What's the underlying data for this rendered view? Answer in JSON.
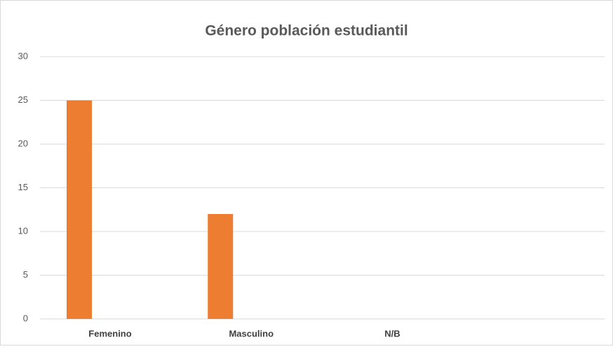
{
  "chart_data": {
    "type": "bar",
    "title": "Género población estudiantil",
    "categories": [
      "Femenino",
      "Masculino",
      "N/B",
      null
    ],
    "values": [
      25,
      12,
      0,
      null
    ],
    "color": "#ed7d31",
    "ylim": [
      0,
      30
    ],
    "yticks": [
      0,
      5,
      10,
      15,
      20,
      25,
      30
    ],
    "grid": true
  }
}
